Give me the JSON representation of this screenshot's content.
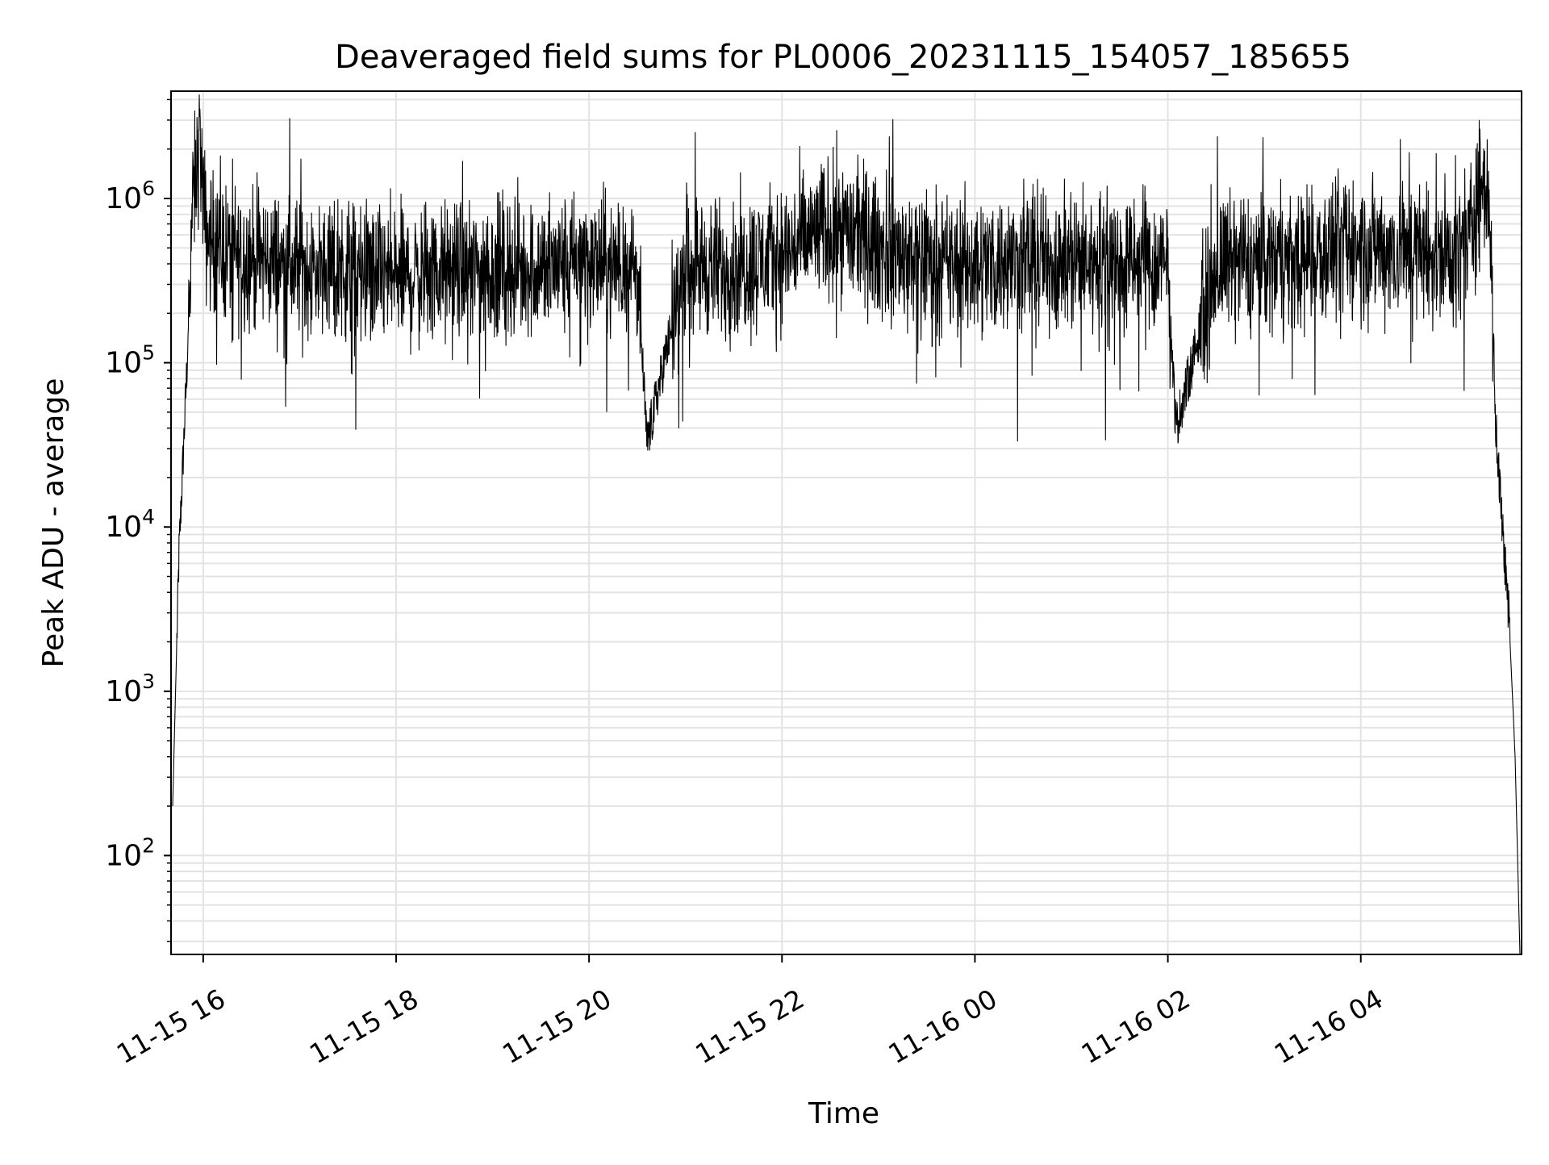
{
  "chart_data": {
    "type": "line",
    "title": "Deaveraged field sums for PL0006_20231115_154057_185655",
    "xlabel": "Time",
    "ylabel": "Peak ADU - average",
    "yscale": "log",
    "grid": true,
    "xlim": [
      "2023-11-15 15:40",
      "2023-11-16 05:40"
    ],
    "ylim": [
      25,
      4500000
    ],
    "x_ticks": [
      "11-15 16",
      "11-15 18",
      "11-15 20",
      "11-15 22",
      "11-16 00",
      "11-16 02",
      "11-16 04"
    ],
    "y_ticks": [
      {
        "base": "10",
        "exp": "2",
        "value": 100
      },
      {
        "base": "10",
        "exp": "3",
        "value": 1000
      },
      {
        "base": "10",
        "exp": "4",
        "value": 10000
      },
      {
        "base": "10",
        "exp": "5",
        "value": 100000
      },
      {
        "base": "10",
        "exp": "6",
        "value": 1000000
      }
    ],
    "line_color": "#000000",
    "series": [
      {
        "x": [
          "2023-11-15 15:41",
          "2023-11-15 15:43",
          "2023-11-15 15:45",
          "2023-11-15 15:47",
          "2023-11-15 15:50",
          "2023-11-15 15:53",
          "2023-11-15 15:56",
          "2023-11-15 15:58",
          "2023-11-15 16:00",
          "2023-11-15 16:02",
          "2023-11-15 16:05",
          "2023-11-15 16:10",
          "2023-11-15 16:20",
          "2023-11-15 16:40",
          "2023-11-15 17:00",
          "2023-11-15 17:30",
          "2023-11-15 18:00",
          "2023-11-15 18:30",
          "2023-11-15 19:00",
          "2023-11-15 19:30",
          "2023-11-15 20:00",
          "2023-11-15 20:30",
          "2023-11-15 20:36",
          "2023-11-15 21:00",
          "2023-11-15 21:20",
          "2023-11-15 21:30",
          "2023-11-15 22:00",
          "2023-11-15 22:20",
          "2023-11-15 22:35",
          "2023-11-15 23:00",
          "2023-11-15 23:30",
          "2023-11-15 23:45",
          "2023-11-16 00:00",
          "2023-11-16 00:30",
          "2023-11-16 01:00",
          "2023-11-16 01:30",
          "2023-11-16 02:00",
          "2023-11-16 02:05",
          "2023-11-16 02:30",
          "2023-11-16 03:00",
          "2023-11-16 03:30",
          "2023-11-16 04:00",
          "2023-11-16 04:30",
          "2023-11-16 05:00",
          "2023-11-16 05:10",
          "2023-11-16 05:15",
          "2023-11-16 05:20",
          "2023-11-16 05:24",
          "2023-11-16 05:28",
          "2023-11-16 05:32",
          "2023-11-16 05:36",
          "2023-11-16 05:39"
        ],
        "y": [
          200,
          1200,
          7000,
          20000,
          100000,
          800000,
          1500000,
          2500000,
          900000,
          600000,
          550000,
          500000,
          450000,
          420000,
          380000,
          360000,
          330000,
          350000,
          370000,
          380000,
          400000,
          380000,
          32000,
          420000,
          360000,
          380000,
          450000,
          600000,
          700000,
          500000,
          420000,
          380000,
          400000,
          410000,
          420000,
          400000,
          380000,
          40000,
          380000,
          420000,
          450000,
          520000,
          480000,
          450000,
          700000,
          1200000,
          1000000,
          40000,
          10000,
          3000,
          400,
          25
        ]
      }
    ]
  }
}
